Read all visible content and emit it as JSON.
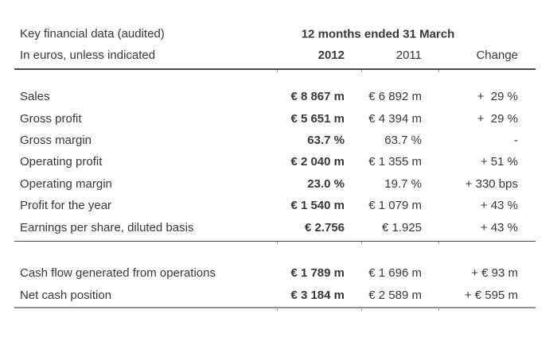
{
  "page": {
    "background": "#ffffff",
    "text_color": "#383838",
    "rule_color": "#4a4a4a",
    "bottom_rule_color": "#909090"
  },
  "table": {
    "title": "Key financial data (audited)",
    "subtitle": "In euros, unless indicated",
    "period_header": "12 months ended 31 March",
    "columns": {
      "y2012": "2012",
      "y2011": "2011",
      "change": "Change"
    },
    "rows": [
      {
        "label": "Sales",
        "y2012": "€ 8 867 m",
        "y2011": "€ 6 892 m",
        "change": "+  29 %"
      },
      {
        "label": "Gross profit",
        "y2012": "€ 5 651 m",
        "y2011": "€ 4 394 m",
        "change": "+  29 %"
      },
      {
        "label": "Gross margin",
        "y2012": "63.7 %",
        "y2011": "63.7 %",
        "change": "-"
      },
      {
        "label": "Operating profit",
        "y2012": "€ 2 040 m",
        "y2011": "€ 1 355 m",
        "change": "+ 51 %"
      },
      {
        "label": "Operating margin",
        "y2012": "23.0 %",
        "y2011": "19.7 %",
        "change": "+ 330 bps"
      },
      {
        "label": "Profit for the year",
        "y2012": "€ 1 540 m",
        "y2011": "€ 1 079 m",
        "change": "+ 43 %"
      },
      {
        "label": "Earnings per share, diluted basis",
        "y2012": "€ 2.756",
        "y2011": "€ 1.925",
        "change": "+ 43 %"
      }
    ],
    "cash_rows": [
      {
        "label": "Cash flow generated from operations",
        "y2012": "€ 1 789 m",
        "y2011": "€ 1 696 m",
        "change": "+ € 93 m"
      },
      {
        "label": "Net cash position",
        "y2012": "€ 3 184 m",
        "y2011": "€ 2 589 m",
        "change": "+ € 595 m"
      }
    ]
  }
}
